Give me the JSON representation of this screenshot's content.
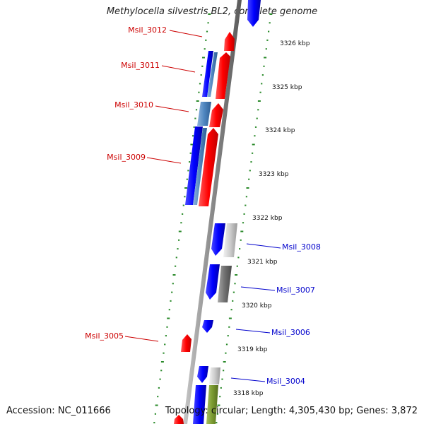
{
  "title": "Methylocella silvestris BL2, complete genome",
  "footer": {
    "accession": "Accession: NC_011666",
    "summary": "Topology: circular; Length: 4,305,430 bp; Genes: 3,872"
  },
  "colors": {
    "minus_strand_label": "#cc0000",
    "plus_strand_label": "#0000cc",
    "backbone": "#8a8a8a",
    "tick": "#2a8a2a"
  },
  "kbp_labels": [
    "3326 kbp",
    "3325 kbp",
    "3324 kbp",
    "3323 kbp",
    "3322 kbp",
    "3321 kbp",
    "3320 kbp",
    "3319 kbp",
    "3318 kbp"
  ],
  "left_genes": [
    "Msil_3012",
    "Msil_3011",
    "Msil_3010",
    "Msil_3009",
    "Msil_3005"
  ],
  "right_genes": [
    "Msil_3008",
    "Msil_3007",
    "Msil_3006",
    "Msil_3004"
  ]
}
